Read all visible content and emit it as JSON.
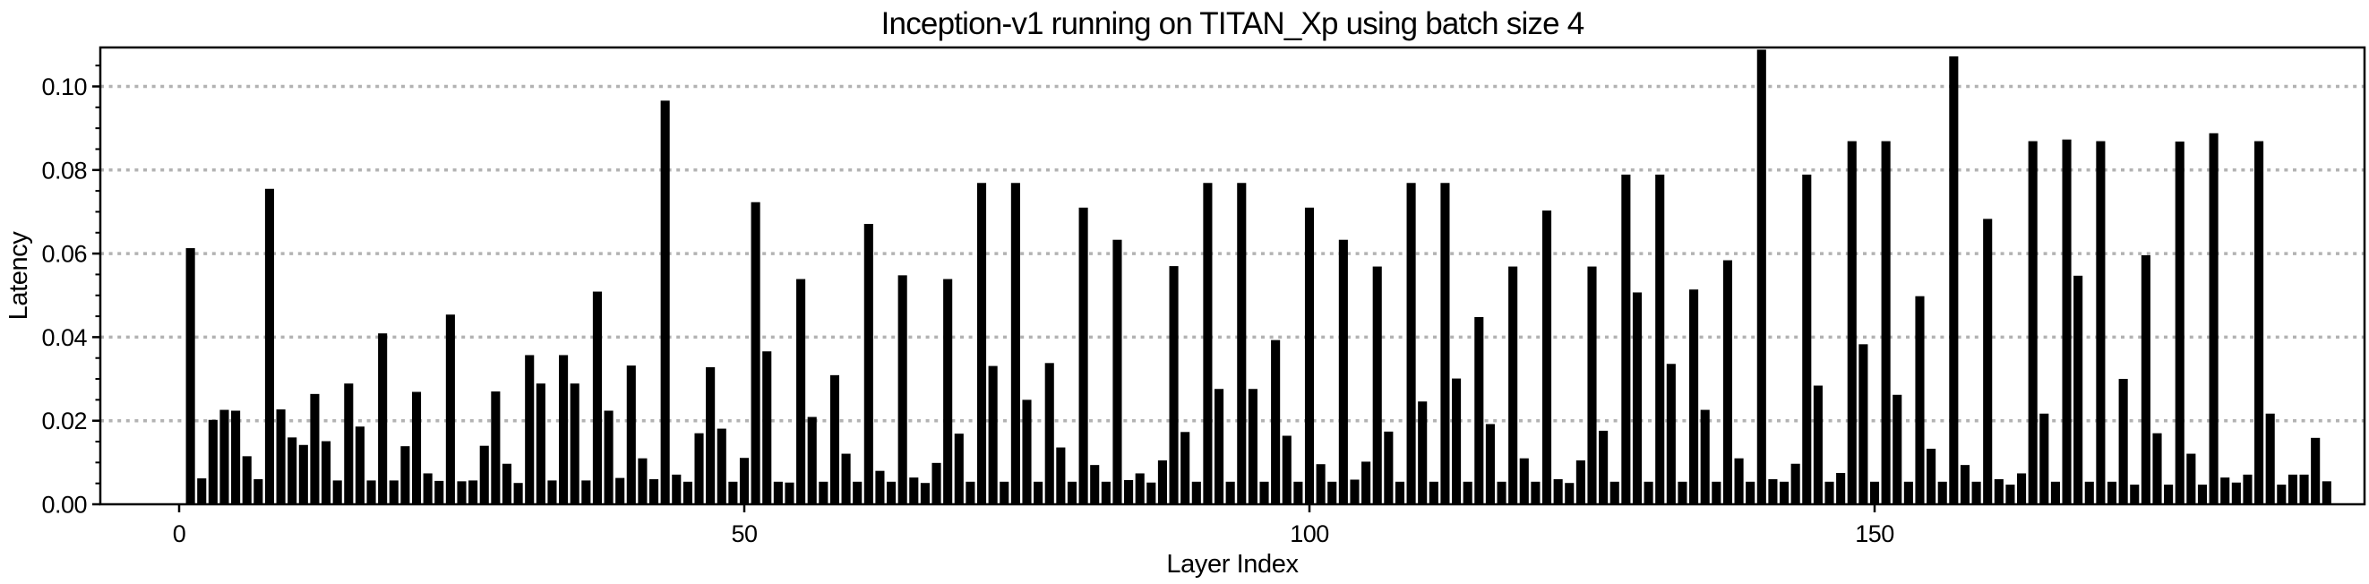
{
  "figure": {
    "background_color": "#ffffff",
    "text_color": "#000000"
  },
  "chart_data": {
    "type": "bar",
    "title": "Inception-v1 running on TITAN_Xp using batch size 4",
    "xlabel": "Layer Index",
    "ylabel": "Latency",
    "bar_color": "#000000",
    "grid_color": "#b2b2b2",
    "grid_style": "dotted horizontal lines at each y major tick",
    "legend": "none",
    "x_ticks": [
      0,
      50,
      100,
      150
    ],
    "y_ticks": [
      0.0,
      0.02,
      0.04,
      0.06,
      0.08,
      0.1
    ],
    "y_minor_tick_step": 0.005,
    "ylim": [
      0,
      0.1093
    ],
    "xlim": [
      -7,
      193.4
    ],
    "layer_index_start": 1,
    "values": [
      0.0613,
      0.0062,
      0.0202,
      0.0226,
      0.0224,
      0.0115,
      0.006,
      0.0755,
      0.0227,
      0.016,
      0.0142,
      0.0264,
      0.0151,
      0.0057,
      0.0289,
      0.0186,
      0.0057,
      0.0409,
      0.0057,
      0.0139,
      0.0269,
      0.0074,
      0.0056,
      0.0454,
      0.0055,
      0.0057,
      0.014,
      0.027,
      0.0097,
      0.0051,
      0.0357,
      0.0289,
      0.0057,
      0.0357,
      0.0289,
      0.0057,
      0.0509,
      0.0224,
      0.0063,
      0.0332,
      0.011,
      0.006,
      0.0966,
      0.0071,
      0.0054,
      0.017,
      0.0328,
      0.0181,
      0.0054,
      0.0111,
      0.0723,
      0.0366,
      0.0054,
      0.0052,
      0.0539,
      0.0209,
      0.0054,
      0.0309,
      0.0121,
      0.0054,
      0.0671,
      0.008,
      0.0054,
      0.0548,
      0.0064,
      0.0051,
      0.0099,
      0.0539,
      0.0169,
      0.0054,
      0.0769,
      0.0331,
      0.0054,
      0.0769,
      0.025,
      0.0054,
      0.0338,
      0.0136,
      0.0054,
      0.071,
      0.0094,
      0.0054,
      0.0633,
      0.0058,
      0.0074,
      0.0052,
      0.0105,
      0.057,
      0.0173,
      0.0054,
      0.0769,
      0.0276,
      0.0054,
      0.0769,
      0.0276,
      0.0054,
      0.0393,
      0.0164,
      0.0054,
      0.071,
      0.0096,
      0.0054,
      0.0633,
      0.0059,
      0.0102,
      0.0569,
      0.0174,
      0.0054,
      0.0769,
      0.0246,
      0.0054,
      0.0769,
      0.0301,
      0.0054,
      0.0448,
      0.0192,
      0.0054,
      0.0569,
      0.011,
      0.0054,
      0.0703,
      0.006,
      0.0051,
      0.0105,
      0.0569,
      0.0176,
      0.0054,
      0.0789,
      0.0507,
      0.0054,
      0.0789,
      0.0336,
      0.0054,
      0.0514,
      0.0226,
      0.0054,
      0.0584,
      0.011,
      0.0054,
      0.1088,
      0.006,
      0.0054,
      0.0097,
      0.0789,
      0.0284,
      0.0054,
      0.0075,
      0.0869,
      0.0383,
      0.0054,
      0.0869,
      0.0262,
      0.0054,
      0.0498,
      0.0133,
      0.0054,
      0.1072,
      0.0094,
      0.0054,
      0.0683,
      0.006,
      0.0047,
      0.0074,
      0.0869,
      0.0217,
      0.0054,
      0.0873,
      0.0547,
      0.0054,
      0.0869,
      0.0054,
      0.03,
      0.0047,
      0.0596,
      0.017,
      0.0047,
      0.0868,
      0.0121,
      0.0047,
      0.0888,
      0.0064,
      0.0052,
      0.0071,
      0.0869,
      0.0217,
      0.0047,
      0.0071,
      0.0071,
      0.0159,
      0.0055
    ]
  }
}
